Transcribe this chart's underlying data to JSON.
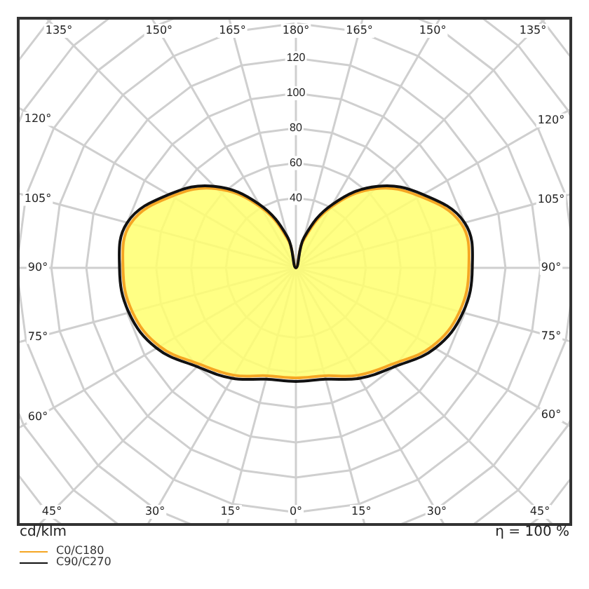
{
  "chart_data": {
    "type": "radar",
    "categories": [
      "180°",
      "165°",
      "150°",
      "135°",
      "120°",
      "105°",
      "90°",
      "75°",
      "60°",
      "45°",
      "30°",
      "15°",
      "0°",
      "15°",
      "30°",
      "45°",
      "60°",
      "75°",
      "90°",
      "105°",
      "120°",
      "135°",
      "150°",
      "165°"
    ],
    "series": [
      {
        "name": "C90/C270",
        "color": "#111111",
        "values": [
          0,
          18,
          42,
          66,
          84,
          100,
          101,
          99,
          92,
          80,
          73,
          66,
          65,
          66,
          73,
          80,
          92,
          99,
          101,
          100,
          84,
          66,
          42,
          18
        ]
      },
      {
        "name": "C0/C180",
        "type": "area",
        "color": "#f5a623",
        "values": [
          0,
          16,
          40,
          64,
          82,
          98,
          99,
          97,
          90,
          78,
          71,
          64,
          63,
          64,
          71,
          78,
          90,
          97,
          99,
          98,
          82,
          64,
          40,
          16
        ]
      }
    ],
    "ylim": [
      0,
      220
    ],
    "yticks": [
      40,
      60,
      80,
      100,
      120
    ],
    "grid": true,
    "legend": "bottom left",
    "annotations": [
      "cd/klm",
      "η = 100 %"
    ]
  }
}
